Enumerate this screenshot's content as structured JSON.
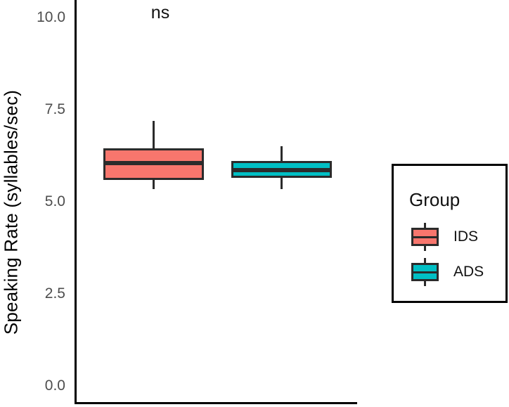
{
  "legend": {
    "title": "Group",
    "items": [
      {
        "label": "IDS",
        "color": "#F8766D"
      },
      {
        "label": "ADS",
        "color": "#00BFC4"
      }
    ]
  },
  "chart_data": {
    "type": "boxplot",
    "title": "",
    "xlabel": "",
    "ylabel": "Speaking Rate (syllables/sec)",
    "ylim": [
      0,
      10
    ],
    "yticks": [
      10.0,
      7.5,
      5.0,
      2.5,
      0.0
    ],
    "ytick_labels": [
      "10.0",
      "7.5",
      "5.0",
      "2.5",
      "0.0"
    ],
    "grid": false,
    "legend_position": "right",
    "legend_title": "Group",
    "annotation": {
      "text": "ns",
      "above_group": "IDS"
    },
    "groups": [
      {
        "name": "IDS",
        "fill": "#F8766D",
        "stats": {
          "whisker_low": 5.35,
          "q1": 5.6,
          "median": 6.05,
          "q3": 6.45,
          "whisker_high": 7.2
        }
      },
      {
        "name": "ADS",
        "fill": "#00BFC4",
        "stats": {
          "whisker_low": 5.35,
          "q1": 5.65,
          "median": 5.85,
          "q3": 6.1,
          "whisker_high": 6.5
        }
      }
    ]
  }
}
